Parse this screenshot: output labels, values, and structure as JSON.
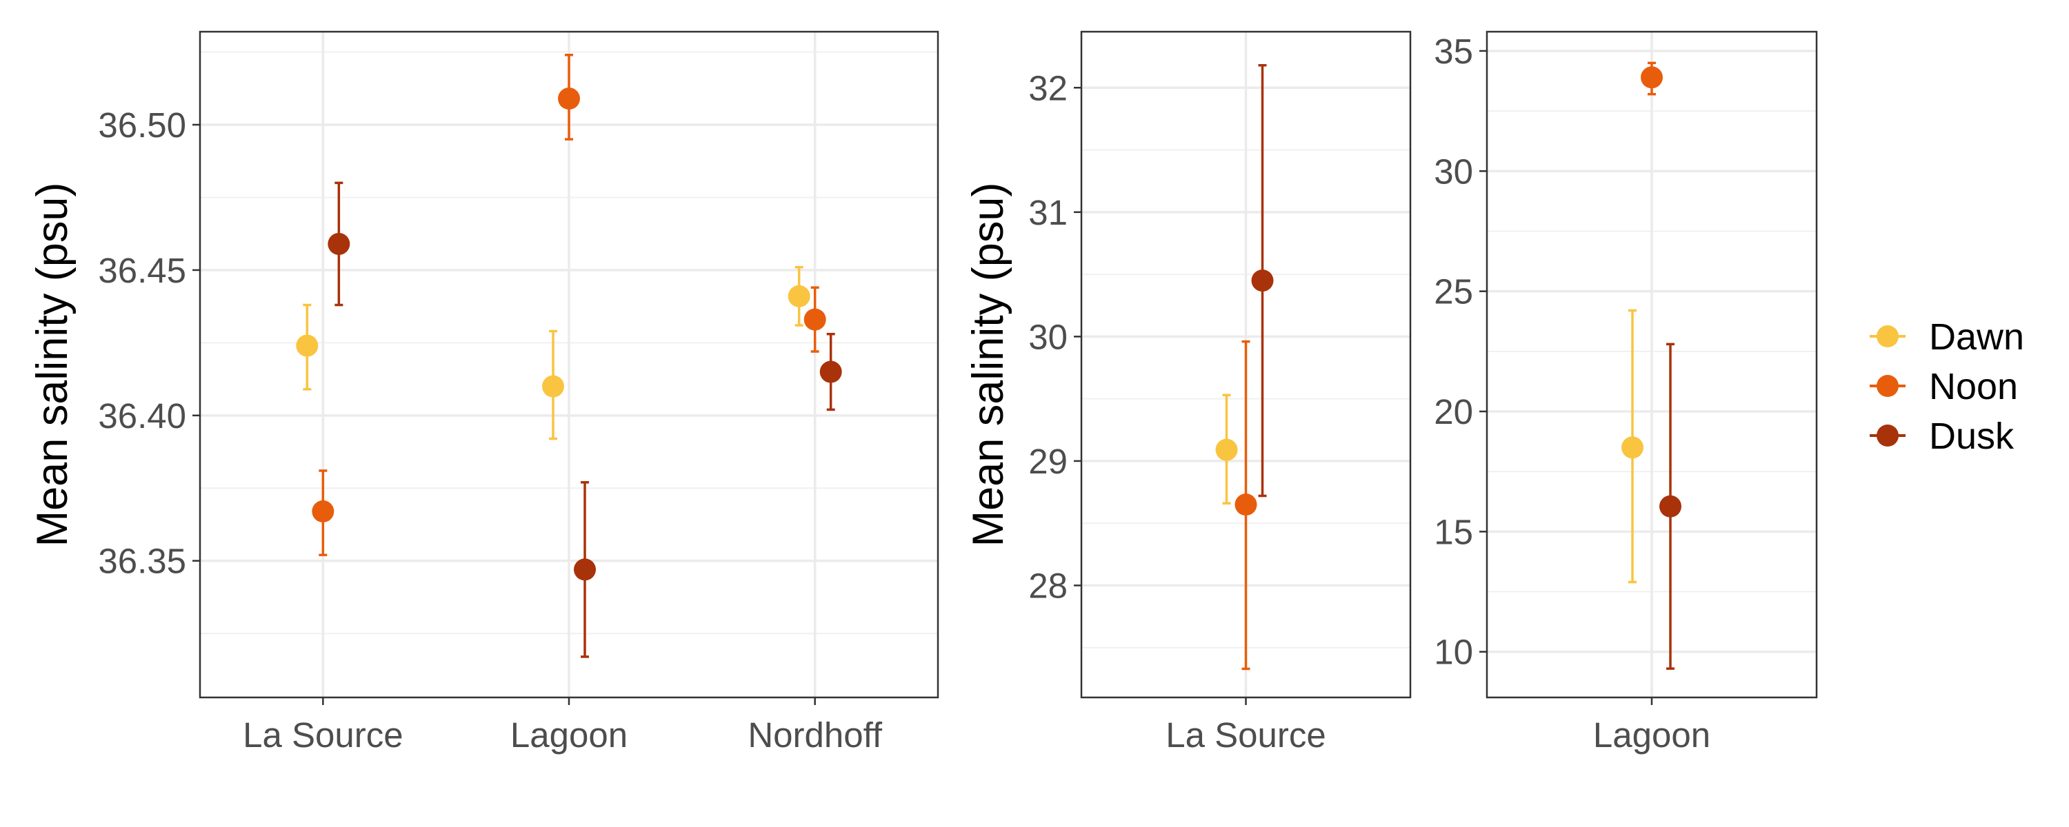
{
  "colors": {
    "Dawn": "#F9C440",
    "Noon": "#E85D0C",
    "Dusk": "#A8320A"
  },
  "legend": {
    "entries": [
      "Dawn",
      "Noon",
      "Dusk"
    ]
  },
  "chart_data": [
    {
      "type": "scatter",
      "ylabel": "Mean salinity (psu)",
      "xlabel": "",
      "categories": [
        "La Source",
        "Lagoon",
        "Nordhoff"
      ],
      "ylim": [
        36.303,
        36.532
      ],
      "yticks": [
        36.35,
        36.4,
        36.45,
        36.5
      ],
      "ytick_labels": [
        "36.35",
        "36.40",
        "36.45",
        "36.50"
      ],
      "series": [
        {
          "name": "Dawn",
          "y": [
            36.424,
            36.41,
            36.441
          ],
          "ymin": [
            36.409,
            36.392,
            36.431
          ],
          "ymax": [
            36.438,
            36.429,
            36.451
          ]
        },
        {
          "name": "Noon",
          "y": [
            36.367,
            36.509,
            36.433
          ],
          "ymin": [
            36.352,
            36.495,
            36.422
          ],
          "ymax": [
            36.381,
            36.524,
            36.444
          ]
        },
        {
          "name": "Dusk",
          "y": [
            36.459,
            36.347,
            36.415
          ],
          "ymin": [
            36.438,
            36.317,
            36.402
          ],
          "ymax": [
            36.48,
            36.377,
            36.428
          ]
        }
      ],
      "grid": true
    },
    {
      "type": "scatter",
      "ylabel": "Mean salinity (psu)",
      "xlabel": "",
      "categories": [
        "La Source"
      ],
      "ylim": [
        27.1,
        32.45
      ],
      "yticks": [
        28,
        29,
        30,
        31,
        32
      ],
      "ytick_labels": [
        "28",
        "29",
        "30",
        "31",
        "32"
      ],
      "series": [
        {
          "name": "Dawn",
          "y": [
            29.09
          ],
          "ymin": [
            28.66
          ],
          "ymax": [
            29.53
          ]
        },
        {
          "name": "Noon",
          "y": [
            28.65
          ],
          "ymin": [
            27.33
          ],
          "ymax": [
            29.96
          ]
        },
        {
          "name": "Dusk",
          "y": [
            30.45
          ],
          "ymin": [
            28.72
          ],
          "ymax": [
            32.18
          ]
        }
      ],
      "grid": true
    },
    {
      "type": "scatter",
      "ylabel": "",
      "xlabel": "",
      "categories": [
        "Lagoon"
      ],
      "ylim": [
        8.1,
        35.8
      ],
      "yticks": [
        10,
        15,
        20,
        25,
        30,
        35
      ],
      "ytick_labels": [
        "10",
        "15",
        "20",
        "25",
        "30",
        "35"
      ],
      "series": [
        {
          "name": "Dawn",
          "y": [
            18.5
          ],
          "ymin": [
            12.9
          ],
          "ymax": [
            24.2
          ]
        },
        {
          "name": "Noon",
          "y": [
            33.9
          ],
          "ymin": [
            33.2
          ],
          "ymax": [
            34.5
          ]
        },
        {
          "name": "Dusk",
          "y": [
            16.05
          ],
          "ymin": [
            9.3
          ],
          "ymax": [
            22.8
          ]
        }
      ],
      "grid": true
    }
  ]
}
